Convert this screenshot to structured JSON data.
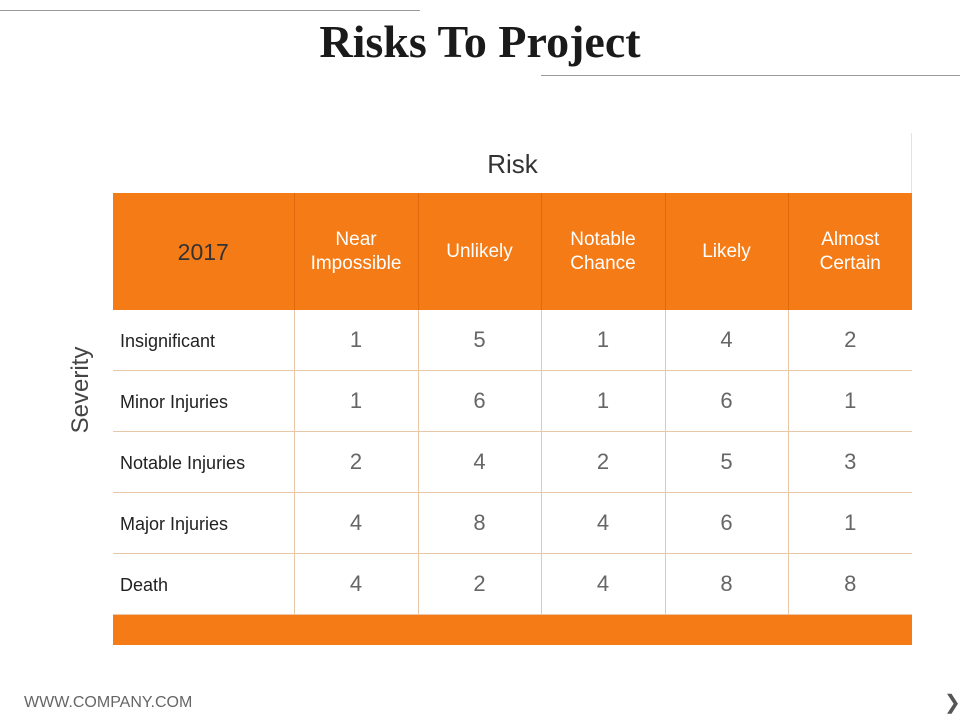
{
  "slide": {
    "title": "Risks To Project",
    "axis_risk": "Risk",
    "axis_severity": "Severity",
    "footer": "WWW.COMPANY.COM",
    "next_glyph": "❯"
  },
  "table": {
    "corner": "2017",
    "columns": [
      [
        "Near",
        "Impossible"
      ],
      [
        "Unlikely"
      ],
      [
        "Notable",
        "Chance"
      ],
      [
        "Likely"
      ],
      [
        "Almost",
        "Certain"
      ]
    ],
    "rows": [
      {
        "label": "Insignificant",
        "values": [
          "1",
          "5",
          "1",
          "4",
          "2"
        ]
      },
      {
        "label": "Minor Injuries",
        "values": [
          "1",
          "6",
          "1",
          "6",
          "1"
        ]
      },
      {
        "label": "Notable Injuries",
        "values": [
          "2",
          "4",
          "2",
          "5",
          "3"
        ]
      },
      {
        "label": "Major Injuries",
        "values": [
          "4",
          "8",
          "4",
          "6",
          "1"
        ]
      },
      {
        "label": "Death",
        "values": [
          "4",
          "2",
          "4",
          "8",
          "8"
        ]
      }
    ]
  },
  "colors": {
    "accent": "#f47b16",
    "grid_line": "#e8c7a8"
  }
}
